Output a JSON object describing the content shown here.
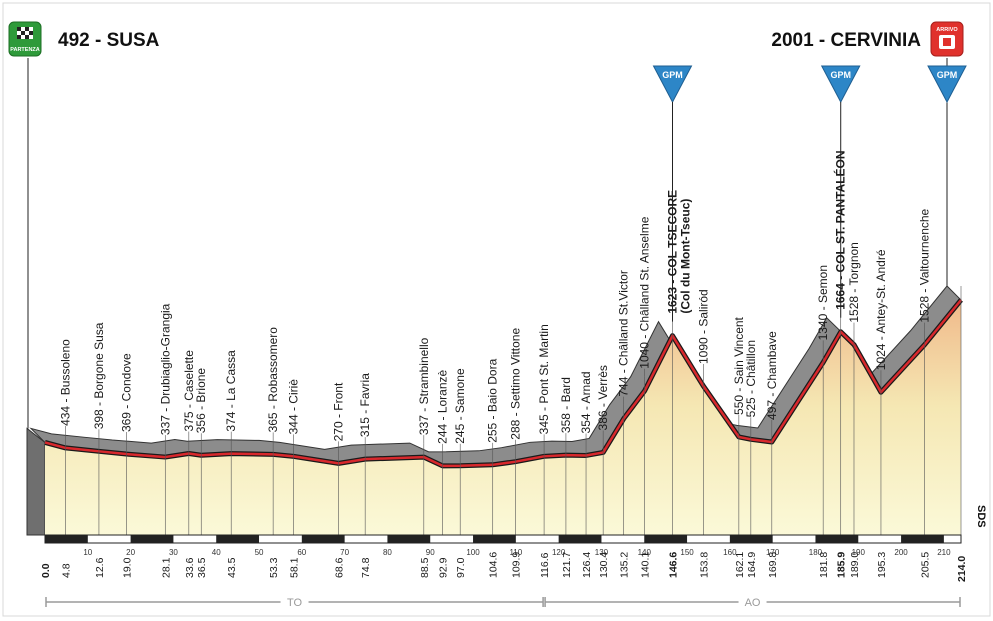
{
  "start": {
    "label": "492 - SUSA",
    "badge": "PARTENZA"
  },
  "finish": {
    "label": "2001 - CERVINIA",
    "badge": "ARRIVO"
  },
  "regions": [
    {
      "name": "TO",
      "from": 0,
      "to": 116.6
    },
    {
      "name": "AO",
      "from": 116.6,
      "to": 214.0
    }
  ],
  "logo_text": "SDS",
  "chart_data": {
    "type": "area",
    "x_range": [
      0,
      214.0
    ],
    "scale_ticks": [
      10,
      20,
      30,
      40,
      50,
      60,
      70,
      80,
      90,
      100,
      110,
      120,
      130,
      140,
      150,
      160,
      170,
      180,
      190,
      200,
      210
    ],
    "elevation_profile": [
      [
        0.0,
        492
      ],
      [
        4.8,
        434
      ],
      [
        12.6,
        398
      ],
      [
        19.0,
        369
      ],
      [
        28.1,
        337
      ],
      [
        33.6,
        375
      ],
      [
        36.5,
        356
      ],
      [
        43.5,
        374
      ],
      [
        53.3,
        365
      ],
      [
        58.1,
        344
      ],
      [
        68.6,
        270
      ],
      [
        74.8,
        315
      ],
      [
        88.5,
        337
      ],
      [
        92.9,
        244
      ],
      [
        97.0,
        245
      ],
      [
        104.6,
        255
      ],
      [
        109.9,
        288
      ],
      [
        116.6,
        345
      ],
      [
        121.7,
        358
      ],
      [
        126.4,
        354
      ],
      [
        130.4,
        386
      ],
      [
        135.2,
        744
      ],
      [
        140.1,
        1040
      ],
      [
        146.6,
        1623
      ],
      [
        153.8,
        1090
      ],
      [
        162.1,
        550
      ],
      [
        164.9,
        525
      ],
      [
        169.8,
        497
      ],
      [
        181.8,
        1340
      ],
      [
        185.9,
        1664
      ],
      [
        189.0,
        1528
      ],
      [
        195.3,
        1024
      ],
      [
        205.5,
        1528
      ],
      [
        214.0,
        2001
      ]
    ],
    "waypoints": [
      {
        "km": 4.8,
        "label": "434 - Bussoleno",
        "km_label": "4.8"
      },
      {
        "km": 12.6,
        "label": "398 - Borgone Susa",
        "km_label": "12.6"
      },
      {
        "km": 19.0,
        "label": "369 - Condove",
        "km_label": "19.0"
      },
      {
        "km": 28.1,
        "label": "337 - Drubiaglio-Grangia",
        "km_label": "28.1"
      },
      {
        "km": 33.6,
        "label": "375 - Caselette",
        "km_label": "33.6"
      },
      {
        "km": 36.5,
        "label": "356 - Brione",
        "km_label": "36.5"
      },
      {
        "km": 43.5,
        "label": "374 - La Cassa",
        "km_label": "43.5"
      },
      {
        "km": 53.3,
        "label": "365 - Robassomero",
        "km_label": "53.3"
      },
      {
        "km": 58.1,
        "label": "344 - Ciriè",
        "km_label": "58.1"
      },
      {
        "km": 68.6,
        "label": "270 - Front",
        "km_label": "68.6"
      },
      {
        "km": 74.8,
        "label": "315 - Favria",
        "km_label": "74.8"
      },
      {
        "km": 88.5,
        "label": "337 - Strambinello",
        "km_label": "88.5"
      },
      {
        "km": 92.9,
        "label": "244 - Loranzè",
        "km_label": "92.9"
      },
      {
        "km": 97.0,
        "label": "245 - Samone",
        "km_label": "97.0"
      },
      {
        "km": 104.6,
        "label": "255 - Baio Dora",
        "km_label": "104.6"
      },
      {
        "km": 109.9,
        "label": "288 - Settimo Vittone",
        "km_label": "109.9"
      },
      {
        "km": 116.6,
        "label": "345 - Pont St. Martin",
        "km_label": "116.6"
      },
      {
        "km": 121.7,
        "label": "358 - Bard",
        "km_label": "121.7"
      },
      {
        "km": 126.4,
        "label": "354 - Arnad",
        "km_label": "126.4"
      },
      {
        "km": 130.4,
        "label": "386 - Verrès",
        "km_label": "130.4"
      },
      {
        "km": 135.2,
        "label": "744 - Châlland St.Victor",
        "km_label": "135.2"
      },
      {
        "km": 140.1,
        "label": "1040 - Châlland St. Anselme",
        "km_label": "140.1"
      },
      {
        "km": 146.6,
        "label": "1623 - COL TSECORE",
        "sublabel": "(Col du Mont-Tseuc)",
        "km_label": "146.6",
        "bold": true,
        "gpm": "GPM"
      },
      {
        "km": 153.8,
        "label": "1090 - Saliród",
        "km_label": "153.8"
      },
      {
        "km": 162.1,
        "label": "550 - Sain Vincent",
        "km_label": "162.1"
      },
      {
        "km": 164.9,
        "label": "525 - Châtillon",
        "km_label": "164.9"
      },
      {
        "km": 169.8,
        "label": "497 - Chambave",
        "km_label": "169.8"
      },
      {
        "km": 181.8,
        "label": "1340 - Semon",
        "km_label": "181.8"
      },
      {
        "km": 185.9,
        "label": "1664 - COL ST. PANTALÉON",
        "km_label": "185.9",
        "bold": true,
        "gpm": "GPM"
      },
      {
        "km": 189.0,
        "label": "1528 - Torgnon",
        "km_label": "189.0"
      },
      {
        "km": 195.3,
        "label": "1024 - Antey-St. André",
        "km_label": "195.3"
      },
      {
        "km": 205.5,
        "label": "1528 - Valtournenche",
        "km_label": "205.5"
      },
      {
        "km": 214.0,
        "label": "",
        "km_label": "214.0",
        "bold": true,
        "gpm": "GPM"
      }
    ],
    "start_km_label": "0.0"
  }
}
